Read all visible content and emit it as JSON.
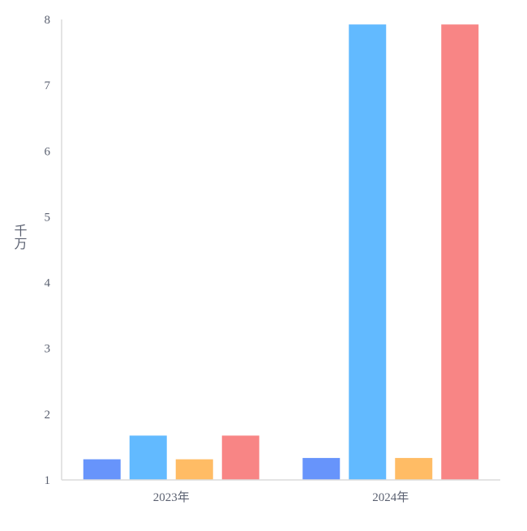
{
  "chart_data": {
    "type": "bar",
    "title": "",
    "ylabel": "千万",
    "xlabel": "",
    "categories": [
      "2023年",
      "2024年"
    ],
    "ylim": [
      1,
      8
    ],
    "yticks": [
      1,
      2,
      3,
      4,
      5,
      6,
      7,
      8
    ],
    "grid": false,
    "legend": "none",
    "series": [
      {
        "values": [
          1.32,
          1.34
        ],
        "color": "#6794fb"
      },
      {
        "values": [
          1.68,
          7.93
        ],
        "color": "#62baff"
      },
      {
        "values": [
          1.32,
          1.34
        ],
        "color": "#ffbc65"
      },
      {
        "values": [
          1.68,
          7.93
        ],
        "color": "#f88585"
      }
    ]
  }
}
